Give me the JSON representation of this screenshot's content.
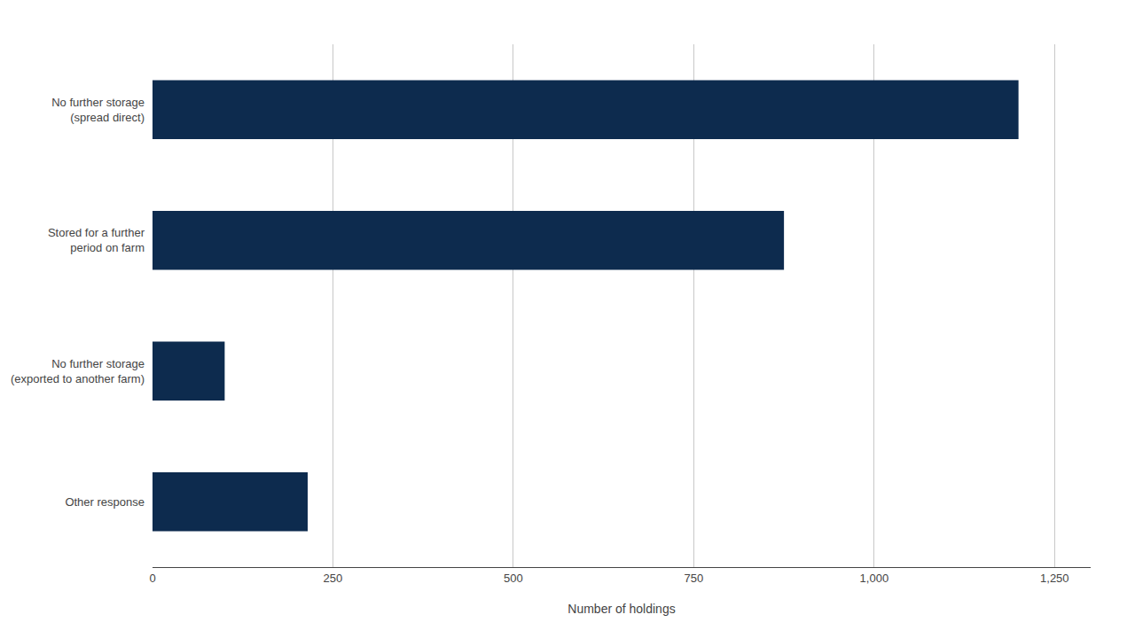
{
  "chart_data": {
    "type": "bar",
    "orientation": "horizontal",
    "categories": [
      "No further storage\n(spread direct)",
      "Stored for a further\nperiod on farm",
      "No further storage\n(exported to another farm)",
      "Other response"
    ],
    "values": [
      1200,
      875,
      100,
      215
    ],
    "color": "#0d2b4e",
    "xlabel": "Number of holdings",
    "xlim": [
      0,
      1300
    ],
    "xticks": [
      0,
      250,
      500,
      750,
      {
        "value": 1000,
        "label": "1,000"
      },
      {
        "value": 1250,
        "label": "1,250"
      }
    ],
    "grid": true
  }
}
